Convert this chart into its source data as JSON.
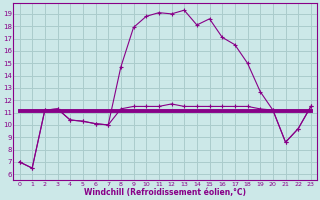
{
  "x": [
    0,
    1,
    2,
    3,
    4,
    5,
    6,
    7,
    8,
    9,
    10,
    11,
    12,
    13,
    14,
    15,
    16,
    17,
    18,
    19,
    20,
    21,
    22,
    23
  ],
  "temp": [
    7.0,
    6.5,
    11.2,
    11.3,
    10.4,
    10.3,
    10.1,
    10.0,
    14.7,
    17.9,
    18.8,
    19.1,
    19.0,
    19.3,
    18.1,
    18.6,
    17.1,
    16.5,
    15.0,
    12.7,
    11.2,
    8.6,
    9.7,
    11.5
  ],
  "windchill": [
    11.1,
    11.1,
    11.1,
    11.1,
    11.1,
    11.1,
    11.1,
    11.1,
    11.1,
    11.1,
    11.1,
    11.1,
    11.1,
    11.1,
    11.1,
    11.1,
    11.1,
    11.1,
    11.1,
    11.1,
    11.1,
    11.1,
    11.1,
    11.1
  ],
  "feels_like": [
    7.0,
    6.5,
    11.2,
    11.3,
    10.4,
    10.3,
    10.1,
    10.0,
    11.3,
    11.5,
    11.5,
    11.5,
    11.7,
    11.5,
    11.5,
    11.5,
    11.5,
    11.5,
    11.5,
    11.3,
    11.2,
    8.6,
    9.7,
    11.5
  ],
  "line_color": "#880088",
  "bg_color": "#cce8e8",
  "grid_color": "#aacccc",
  "xlabel": "Windchill (Refroidissement éolien,°C)",
  "ylabel_ticks": [
    6,
    7,
    8,
    9,
    10,
    11,
    12,
    13,
    14,
    15,
    16,
    17,
    18,
    19
  ],
  "xlim": [
    -0.5,
    23.5
  ],
  "ylim": [
    5.5,
    19.9
  ]
}
